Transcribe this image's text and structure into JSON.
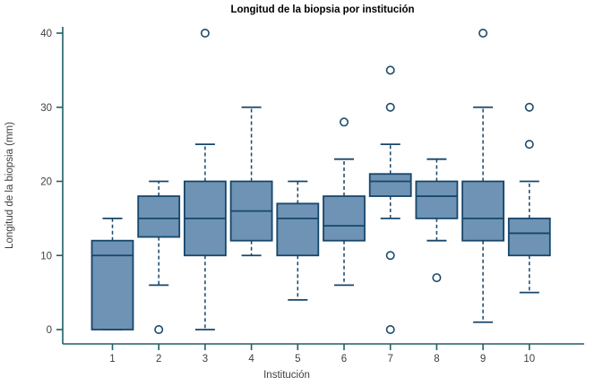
{
  "chart_data": {
    "type": "boxplot",
    "title": "Longitud de la biopsia por institución",
    "xlabel": "Institución",
    "ylabel": "Longitud de la biopsia (mm)",
    "ylim": [
      0,
      40
    ],
    "yticks": [
      0,
      10,
      20,
      30,
      40
    ],
    "grid": false,
    "legend": "none",
    "categories": [
      "1",
      "2",
      "3",
      "4",
      "5",
      "6",
      "7",
      "8",
      "9",
      "10"
    ],
    "series": [
      {
        "category": "1",
        "whisker_low": 0,
        "q1": 0,
        "median": 10,
        "q3": 12,
        "whisker_high": 15,
        "outliers": []
      },
      {
        "category": "2",
        "whisker_low": 6,
        "q1": 12.5,
        "median": 15,
        "q3": 18,
        "whisker_high": 20,
        "outliers": [
          0
        ]
      },
      {
        "category": "3",
        "whisker_low": 0,
        "q1": 10,
        "median": 15,
        "q3": 20,
        "whisker_high": 25,
        "outliers": [
          40
        ]
      },
      {
        "category": "4",
        "whisker_low": 10,
        "q1": 12,
        "median": 16,
        "q3": 20,
        "whisker_high": 30,
        "outliers": []
      },
      {
        "category": "5",
        "whisker_low": 4,
        "q1": 10,
        "median": 15,
        "q3": 17,
        "whisker_high": 20,
        "outliers": []
      },
      {
        "category": "6",
        "whisker_low": 6,
        "q1": 12,
        "median": 14,
        "q3": 18,
        "whisker_high": 23,
        "outliers": [
          28
        ]
      },
      {
        "category": "7",
        "whisker_low": 15,
        "q1": 18,
        "median": 20,
        "q3": 21,
        "whisker_high": 25,
        "outliers": [
          35,
          30,
          10,
          0
        ]
      },
      {
        "category": "8",
        "whisker_low": 12,
        "q1": 15,
        "median": 18,
        "q3": 20,
        "whisker_high": 23,
        "outliers": [
          7
        ]
      },
      {
        "category": "9",
        "whisker_low": 1,
        "q1": 12,
        "median": 15,
        "q3": 20,
        "whisker_high": 30,
        "outliers": [
          40
        ]
      },
      {
        "category": "10",
        "whisker_low": 5,
        "q1": 10,
        "median": 13,
        "q3": 15,
        "whisker_high": 20,
        "outliers": [
          30,
          25
        ]
      }
    ],
    "colors": {
      "box_fill": "#6e93b4",
      "box_stroke": "#17466b",
      "median": "#17466b",
      "whisker": "#17466b",
      "outlier_stroke": "#1b4a6b",
      "outlier_fill": "#ffffff",
      "axis": "#1f5f66",
      "tick_text": "#3f3f3f",
      "title_text": "#000000"
    }
  }
}
